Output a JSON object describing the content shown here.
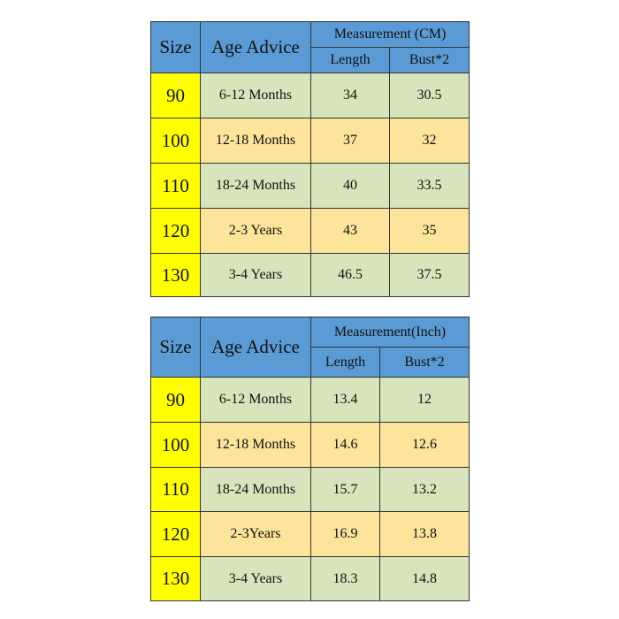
{
  "tables": [
    {
      "header": {
        "size": "Size",
        "age": "Age Advice",
        "measurement": "Measurement (CM)",
        "length": "Length",
        "bust": "Bust*2"
      },
      "rows": [
        [
          "90",
          "6-12 Months",
          "34",
          "30.5"
        ],
        [
          "100",
          "12-18 Months",
          "37",
          "32"
        ],
        [
          "110",
          "18-24 Months",
          "40",
          "33.5"
        ],
        [
          "120",
          "2-3 Years",
          "43",
          "35"
        ],
        [
          "130",
          "3-4 Years",
          "46.5",
          "37.5"
        ]
      ]
    },
    {
      "header": {
        "size": "Size",
        "age": "Age Advice",
        "measurement": "Measurement(Inch)",
        "length": "Length",
        "bust": "Bust*2"
      },
      "rows": [
        [
          "90",
          "6-12 Months",
          "13.4",
          "12"
        ],
        [
          "100",
          "12-18 Months",
          "14.6",
          "12.6"
        ],
        [
          "110",
          "18-24 Months",
          "15.7",
          "13.2"
        ],
        [
          "120",
          "2-3Years",
          "16.9",
          "13.8"
        ],
        [
          "130",
          "3-4 Years",
          "18.3",
          "14.8"
        ]
      ]
    }
  ]
}
